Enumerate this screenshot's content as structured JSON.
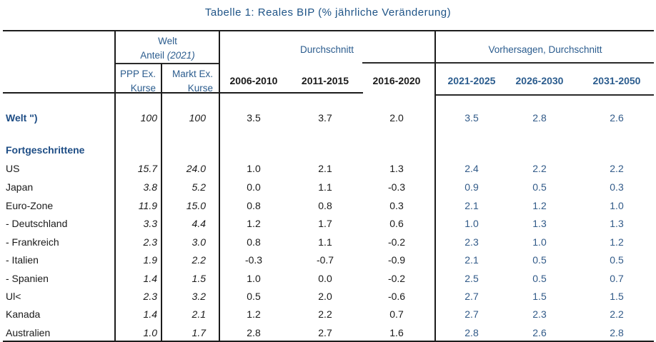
{
  "title": "Tabelle 1: Reales BIP (% jährliche Veränderung)",
  "colors": {
    "header_blue": "#2b5c8e",
    "label_blue": "#1e4d85",
    "forecast_blue": "#315a88",
    "text_black": "#1a1a1a",
    "rule_black": "#1c1c1c"
  },
  "header": {
    "welt_group": {
      "line1": "Welt",
      "line2_regular": "Anteil ",
      "line2_italic": "(2021)"
    },
    "avg_group": "Durchschnitt",
    "forecast_group": "Vorhersagen, Durchschnitt",
    "ppp": {
      "line1": "PPP Ex.",
      "line2": "Kurse"
    },
    "markt": {
      "line1": "Markt Ex.",
      "line2": "Kurse"
    },
    "avg_columns": [
      "2006-2010",
      "2011-2015",
      "2016-2020"
    ],
    "forecast_columns": [
      "2021-2025",
      "2026-2030",
      "2031-2050"
    ]
  },
  "table": {
    "value_column_keys": [
      "ppp-ex-kurse",
      "markt-ex-kurse",
      "2006-2010",
      "2011-2015",
      "2016-2020",
      "2021-2025",
      "2026-2030",
      "2031-2050"
    ],
    "rows": [
      {
        "label": "Welt \")",
        "style": "bold-blue",
        "values": [
          "100",
          "100",
          "3.5",
          "3.7",
          "2.0",
          "3.5",
          "2.8",
          "2.6"
        ]
      },
      {
        "label": "Fortgeschrittene",
        "style": "bold-blue",
        "values": [
          "",
          "",
          "",
          "",
          "",
          "",
          "",
          ""
        ]
      },
      {
        "label": "US",
        "style": "normal",
        "values": [
          "15.7",
          "24.0",
          "1.0",
          "2.1",
          "1.3",
          "2.4",
          "2.2",
          "2.2"
        ]
      },
      {
        "label": "Japan",
        "style": "normal",
        "values": [
          "3.8",
          "5.2",
          "0.0",
          "1.1",
          "-0.3",
          "0.9",
          "0.5",
          "0.3"
        ]
      },
      {
        "label": "Euro-Zone",
        "style": "normal",
        "values": [
          "11.9",
          "15.0",
          "0.8",
          "0.8",
          "0.3",
          "2.1",
          "1.2",
          "1.0"
        ]
      },
      {
        "label": "- Deutschland",
        "style": "normal",
        "values": [
          "3.3",
          "4.4",
          "1.2",
          "1.7",
          "0.6",
          "1.0",
          "1.3",
          "1.3"
        ]
      },
      {
        "label": "- Frankreich",
        "style": "normal",
        "values": [
          "2.3",
          "3.0",
          "0.8",
          "1.1",
          "-0.2",
          "2.3",
          "1.0",
          "1.2"
        ]
      },
      {
        "label": "- Italien",
        "style": "normal",
        "values": [
          "1.9",
          "2.2",
          "-0.3",
          "-0.7",
          "-0.9",
          "2.1",
          "0.5",
          "0.5"
        ]
      },
      {
        "label": "- Spanien",
        "style": "normal",
        "values": [
          "1.4",
          "1.5",
          "1.0",
          "0.0",
          "-0.2",
          "2.5",
          "0.5",
          "0.7"
        ]
      },
      {
        "label": "Ul<",
        "style": "normal",
        "values": [
          "2.3",
          "3.2",
          "0.5",
          "2.0",
          "-0.6",
          "2.7",
          "1.5",
          "1.5"
        ]
      },
      {
        "label": "Kanada",
        "style": "normal",
        "values": [
          "1.4",
          "2.1",
          "1.2",
          "2.2",
          "0.7",
          "2.7",
          "2.3",
          "2.2"
        ]
      },
      {
        "label": "Australien",
        "style": "normal",
        "values": [
          "1.0",
          "1.7",
          "2.8",
          "2.7",
          "1.6",
          "2.8",
          "2.6",
          "2.8"
        ]
      }
    ]
  }
}
